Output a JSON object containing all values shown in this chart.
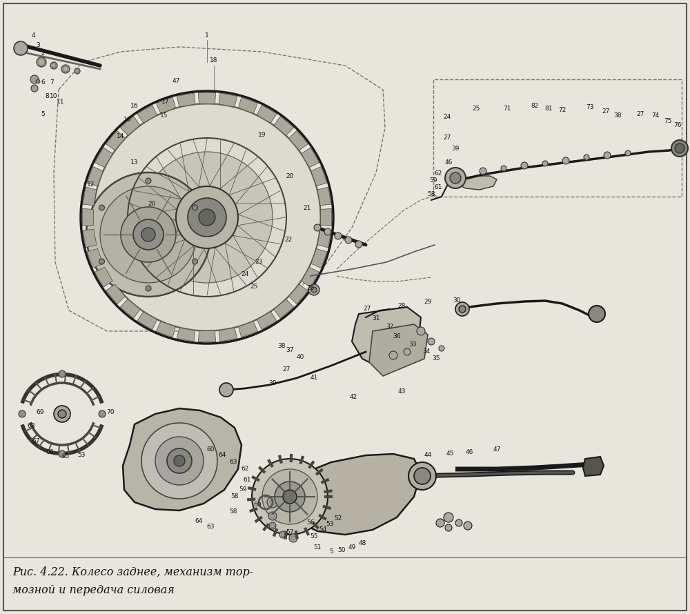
{
  "paper_color": "#e8e5dc",
  "border_color": "#444444",
  "caption_line1": "Рис. 4.22. Колесо заднее, механизм тор-",
  "caption_line2": "мозной и передача силовая",
  "caption_fontsize": 11.5,
  "figsize": [
    10.0,
    8.9
  ],
  "dpi": 100,
  "dark_color": "#1a1a1a",
  "mid_color": "#555555",
  "light_fill": "#c8c5b8",
  "medium_fill": "#b0ada0"
}
